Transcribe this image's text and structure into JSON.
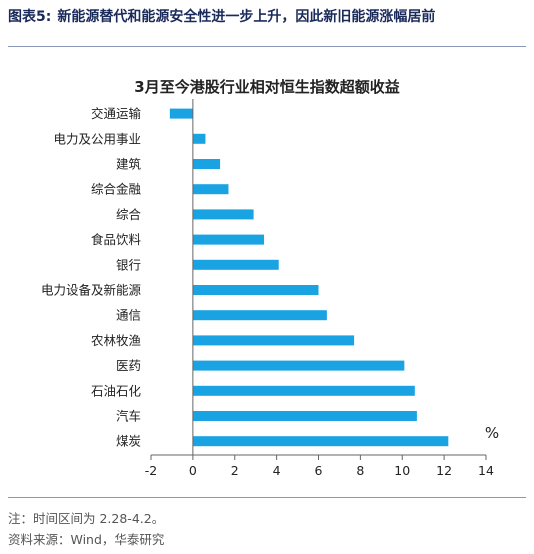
{
  "figure": {
    "number": "图表5:",
    "caption": "新能源替代和能源安全性进一步上升，因此新旧能源涨幅居前"
  },
  "footnotes": {
    "note": "注：时间区间为 2.28-4.2。",
    "source": "资料来源：Wind，华泰研究"
  },
  "colors": {
    "bar": "#1aa3e2",
    "header": "#1a2a5a",
    "rule": "#8a97b8"
  },
  "chart_data": {
    "type": "bar",
    "orientation": "horizontal",
    "title": "3月至今港股行业相对恒生指数超额收益",
    "unit_label": "%",
    "categories": [
      "交通运输",
      "电力及公用事业",
      "建筑",
      "综合金融",
      "综合",
      "食品饮料",
      "银行",
      "电力设备及新能源",
      "通信",
      "农林牧渔",
      "医药",
      "石油石化",
      "汽车",
      "煤炭"
    ],
    "values": [
      -1.1,
      0.6,
      1.3,
      1.7,
      2.9,
      3.4,
      4.1,
      6.0,
      6.4,
      7.7,
      10.1,
      10.6,
      10.7,
      12.2
    ],
    "xlim": [
      -2,
      14
    ],
    "xticks": [
      -2,
      0,
      2,
      4,
      6,
      8,
      10,
      12,
      14
    ],
    "xtick_labels": [
      "-2",
      "0",
      "2",
      "4",
      "6",
      "8",
      "10",
      "12",
      "14"
    ],
    "grid": false,
    "legend": "none"
  }
}
